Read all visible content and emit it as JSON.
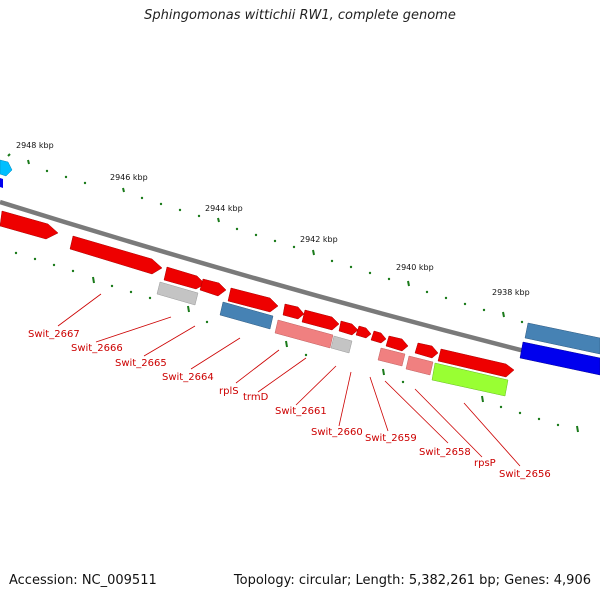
{
  "title": "Sphingomonas wittichii RW1, complete genome",
  "footer": {
    "accession": "Accession: NC_009511",
    "summary": "Topology: circular; Length: 5,382,261 bp; Genes: 4,906"
  },
  "scale_labels": [
    "2948 kbp",
    "2946 kbp",
    "2944 kbp",
    "2942 kbp",
    "2940 kbp",
    "2938 kbp"
  ],
  "gene_labels": [
    "Swit_2667",
    "Swit_2666",
    "Swit_2665",
    "Swit_2664",
    "rplS",
    "trmD",
    "Swit_2661",
    "Swit_2660",
    "Swit_2659",
    "Swit_2658",
    "rpsP",
    "Swit_2656"
  ],
  "colors": {
    "backbone": "#7a7a7a",
    "gene_red": "#ee0000",
    "gene_pink": "#f08080",
    "gene_grey": "#c4c4c4",
    "gene_steel": "#4682b4",
    "gene_blue": "#0000ee",
    "gene_cyan": "#00bfff",
    "gene_lime": "#99ff33",
    "ticks": "#1a7a1a",
    "label": "#cc0000"
  }
}
